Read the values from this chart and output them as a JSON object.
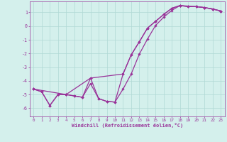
{
  "xlabel": "Windchill (Refroidissement éolien,°C)",
  "bg_color": "#d4f0ec",
  "grid_color": "#b0d8d4",
  "line_color": "#993399",
  "xlim": [
    -0.5,
    23.5
  ],
  "ylim": [
    -6.6,
    1.8
  ],
  "yticks": [
    1,
    0,
    -1,
    -2,
    -3,
    -4,
    -5,
    -6
  ],
  "xticks": [
    0,
    1,
    2,
    3,
    4,
    5,
    6,
    7,
    8,
    9,
    10,
    11,
    12,
    13,
    14,
    15,
    16,
    17,
    18,
    19,
    20,
    21,
    22,
    23
  ],
  "line1_x": [
    0,
    1,
    2,
    3,
    4,
    5,
    6,
    7,
    8,
    9,
    10,
    11,
    12,
    13,
    14,
    15,
    16,
    17,
    18,
    19,
    20,
    21,
    22,
    23
  ],
  "line1_y": [
    -4.6,
    -4.8,
    -5.8,
    -5.0,
    -5.0,
    -5.1,
    -5.2,
    -3.8,
    -5.3,
    -5.5,
    -5.55,
    -3.5,
    -2.1,
    -1.15,
    -0.15,
    0.35,
    0.85,
    1.3,
    1.5,
    1.42,
    1.42,
    1.35,
    1.25,
    1.1
  ],
  "line2_x": [
    0,
    1,
    2,
    3,
    4,
    5,
    6,
    7,
    8,
    9,
    10,
    11,
    12,
    13,
    14,
    15,
    16,
    17,
    18,
    19,
    20,
    21,
    22,
    23
  ],
  "line2_y": [
    -4.6,
    -4.8,
    -5.8,
    -5.0,
    -5.0,
    -5.1,
    -5.2,
    -4.2,
    -5.3,
    -5.5,
    -5.55,
    -4.6,
    -3.5,
    -2.05,
    -0.95,
    0.05,
    0.65,
    1.15,
    1.5,
    1.42,
    1.42,
    1.35,
    1.25,
    1.1
  ],
  "line3_x": [
    0,
    4,
    7,
    11,
    12,
    13,
    14,
    15,
    16,
    17,
    18,
    20,
    21,
    22,
    23
  ],
  "line3_y": [
    -4.6,
    -5.0,
    -3.8,
    -3.5,
    -2.1,
    -1.15,
    -0.15,
    0.35,
    0.85,
    1.3,
    1.5,
    1.42,
    1.35,
    1.25,
    1.1
  ]
}
